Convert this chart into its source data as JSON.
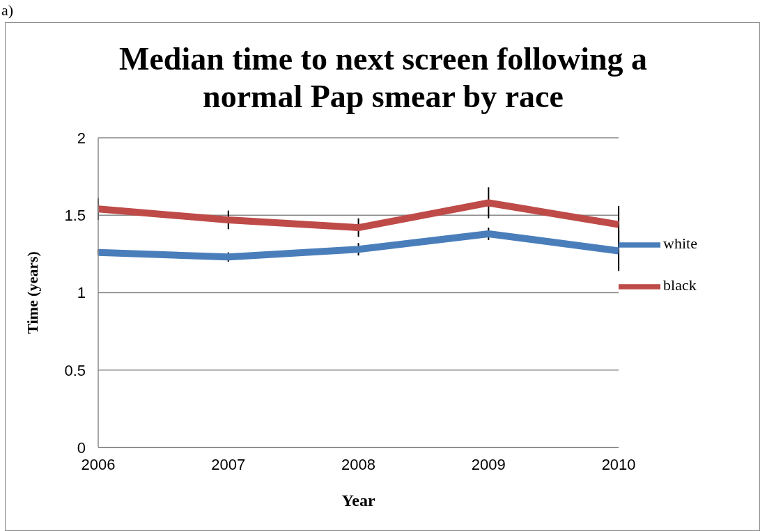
{
  "chart_data": {
    "type": "line",
    "title": "Median time to next screen following a normal Pap smear by race",
    "xlabel": "Year",
    "ylabel": "Time (years)",
    "annotations": [
      "a)"
    ],
    "categories": [
      "2006",
      "2007",
      "2008",
      "2009",
      "2010"
    ],
    "series": [
      {
        "name": "white",
        "color": "#4a7ebb",
        "values": [
          1.26,
          1.23,
          1.28,
          1.38,
          1.27
        ],
        "errors": [
          0.02,
          0.03,
          0.04,
          0.04,
          0.13
        ]
      },
      {
        "name": "black",
        "color": "#be4b48",
        "values": [
          1.54,
          1.47,
          1.42,
          1.58,
          1.44
        ],
        "errors": [
          0.07,
          0.06,
          0.06,
          0.1,
          0.12
        ]
      }
    ],
    "ylim": [
      0,
      2
    ],
    "yticks": [
      0,
      0.5,
      1,
      1.5,
      2
    ],
    "grid": "y",
    "legend": "right",
    "marker": "none",
    "line_style": "solid"
  }
}
